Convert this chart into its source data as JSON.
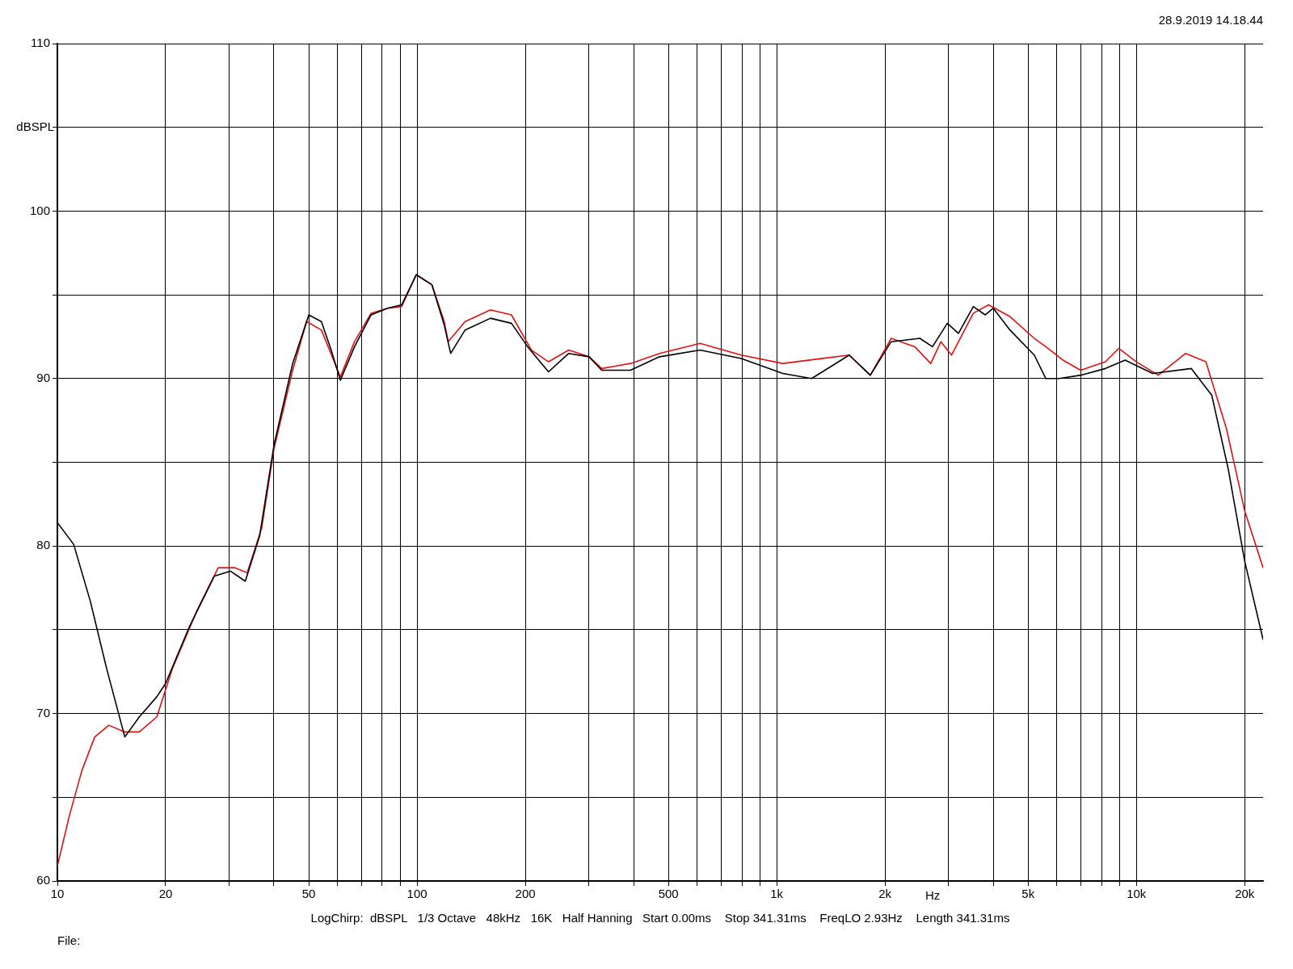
{
  "chart_data": {
    "type": "line",
    "xlabel": "Hz",
    "ylabel": "dBSPL",
    "log": "x",
    "grid": true,
    "legend": false,
    "marker": "none",
    "line_style": "solid",
    "xlim": [
      10,
      22500
    ],
    "ylim": [
      60,
      110
    ],
    "xticks": [
      10,
      20,
      {
        "value": 30,
        "label": null
      },
      {
        "value": 40,
        "label": null
      },
      50,
      {
        "value": 60,
        "label": null
      },
      {
        "value": 70,
        "label": null
      },
      {
        "value": 80,
        "label": null
      },
      {
        "value": 90,
        "label": null
      },
      100,
      200,
      {
        "value": 300,
        "label": null
      },
      {
        "value": 400,
        "label": null
      },
      500,
      {
        "value": 600,
        "label": null
      },
      {
        "value": 700,
        "label": null
      },
      {
        "value": 800,
        "label": null
      },
      {
        "value": 900,
        "label": null
      },
      {
        "value": 1000,
        "label": "1k"
      },
      {
        "value": 2000,
        "label": "2k"
      },
      {
        "value": 3000,
        "label": null
      },
      {
        "value": 4000,
        "label": null
      },
      {
        "value": 5000,
        "label": "5k"
      },
      {
        "value": 6000,
        "label": null
      },
      {
        "value": 7000,
        "label": null
      },
      {
        "value": 8000,
        "label": null
      },
      {
        "value": 9000,
        "label": null
      },
      {
        "value": 10000,
        "label": "10k"
      },
      {
        "value": 20000,
        "label": "20k"
      }
    ],
    "yticks": [
      60,
      {
        "value": 65,
        "label": null
      },
      70,
      {
        "value": 75,
        "label": null
      },
      80,
      {
        "value": 85,
        "label": null
      },
      90,
      {
        "value": 95,
        "label": null
      },
      100,
      {
        "value": 105,
        "label": null
      },
      110
    ],
    "annotations": [
      "28.9.2019 14.18.44",
      "LogChirp:  dBSPL   1/3 Octave   48kHz   16K   Half Hanning   Start 0.00ms    Stop 341.31ms    FreqLO 2.93Hz    Length 341.31ms",
      "File:"
    ],
    "series": [
      {
        "color": "#000000",
        "x": [
          10,
          11.1,
          12.35,
          13.7,
          15.4,
          16.9,
          18.9,
          20,
          23.3,
          27.3,
          30.3,
          33.3,
          36.5,
          40,
          45.1,
          50,
          54.2,
          57.7,
          61.2,
          67,
          74.5,
          82.8,
          90.6,
          99.5,
          110,
          119,
          124,
          136,
          160,
          183,
          203,
          232,
          264,
          301,
          326,
          392,
          472,
          612,
          797,
          1040,
          1250,
          1590,
          1820,
          2080,
          2500,
          2710,
          2980,
          3200,
          3520,
          3800,
          4000,
          4450,
          5200,
          5600,
          6100,
          7000,
          8200,
          9300,
          11100,
          14200,
          16200,
          18000,
          20000,
          22500
        ],
        "values": [
          81.4,
          80.1,
          76.7,
          72.7,
          68.6,
          69.8,
          71.0,
          71.8,
          75.2,
          78.2,
          78.5,
          77.9,
          80.6,
          86.0,
          90.9,
          93.8,
          93.4,
          91.7,
          89.9,
          91.9,
          93.8,
          94.2,
          94.4,
          96.2,
          95.6,
          93.2,
          91.5,
          92.9,
          93.6,
          93.3,
          91.9,
          90.4,
          91.5,
          91.3,
          90.5,
          90.5,
          91.3,
          91.7,
          91.2,
          90.3,
          90.0,
          91.4,
          90.2,
          92.2,
          92.4,
          91.9,
          93.3,
          92.7,
          94.3,
          93.8,
          94.2,
          92.9,
          91.4,
          90.0,
          90.0,
          90.2,
          90.6,
          91.1,
          90.3,
          90.6,
          89.0,
          84.6,
          79.1,
          74.4
        ]
      },
      {
        "color": "#e01010",
        "x": [
          10,
          10.8,
          11.7,
          12.7,
          13.9,
          15.4,
          16.9,
          18.9,
          20.9,
          24.5,
          28,
          31.2,
          33.7,
          37,
          40,
          45.1,
          49.3,
          54.2,
          61.2,
          67,
          74.5,
          82.8,
          90.6,
          99.5,
          110,
          119,
          122,
          136,
          160,
          183,
          208,
          232,
          264,
          301,
          326,
          392,
          472,
          612,
          797,
          1040,
          1340,
          1590,
          1820,
          2080,
          2420,
          2680,
          2860,
          3060,
          3520,
          3880,
          4450,
          5200,
          5600,
          6250,
          7000,
          8200,
          8930,
          10000,
          11500,
          13700,
          15600,
          17800,
          20000,
          22500
        ],
        "values": [
          60.9,
          63.9,
          66.6,
          68.6,
          69.3,
          68.9,
          68.9,
          69.8,
          72.7,
          76.2,
          78.7,
          78.7,
          78.4,
          81.1,
          85.8,
          90.5,
          93.4,
          92.9,
          90.1,
          92.2,
          93.9,
          94.2,
          94.3,
          96.2,
          95.6,
          93.4,
          92.2,
          93.4,
          94.1,
          93.8,
          91.7,
          91.0,
          91.7,
          91.3,
          90.6,
          90.9,
          91.5,
          92.1,
          91.4,
          90.9,
          91.2,
          91.4,
          90.2,
          92.4,
          91.9,
          90.9,
          92.2,
          91.4,
          93.9,
          94.4,
          93.7,
          92.4,
          91.9,
          91.1,
          90.5,
          91.0,
          91.8,
          91.0,
          90.2,
          91.5,
          91.0,
          87.0,
          82.1,
          78.7
        ]
      }
    ]
  }
}
